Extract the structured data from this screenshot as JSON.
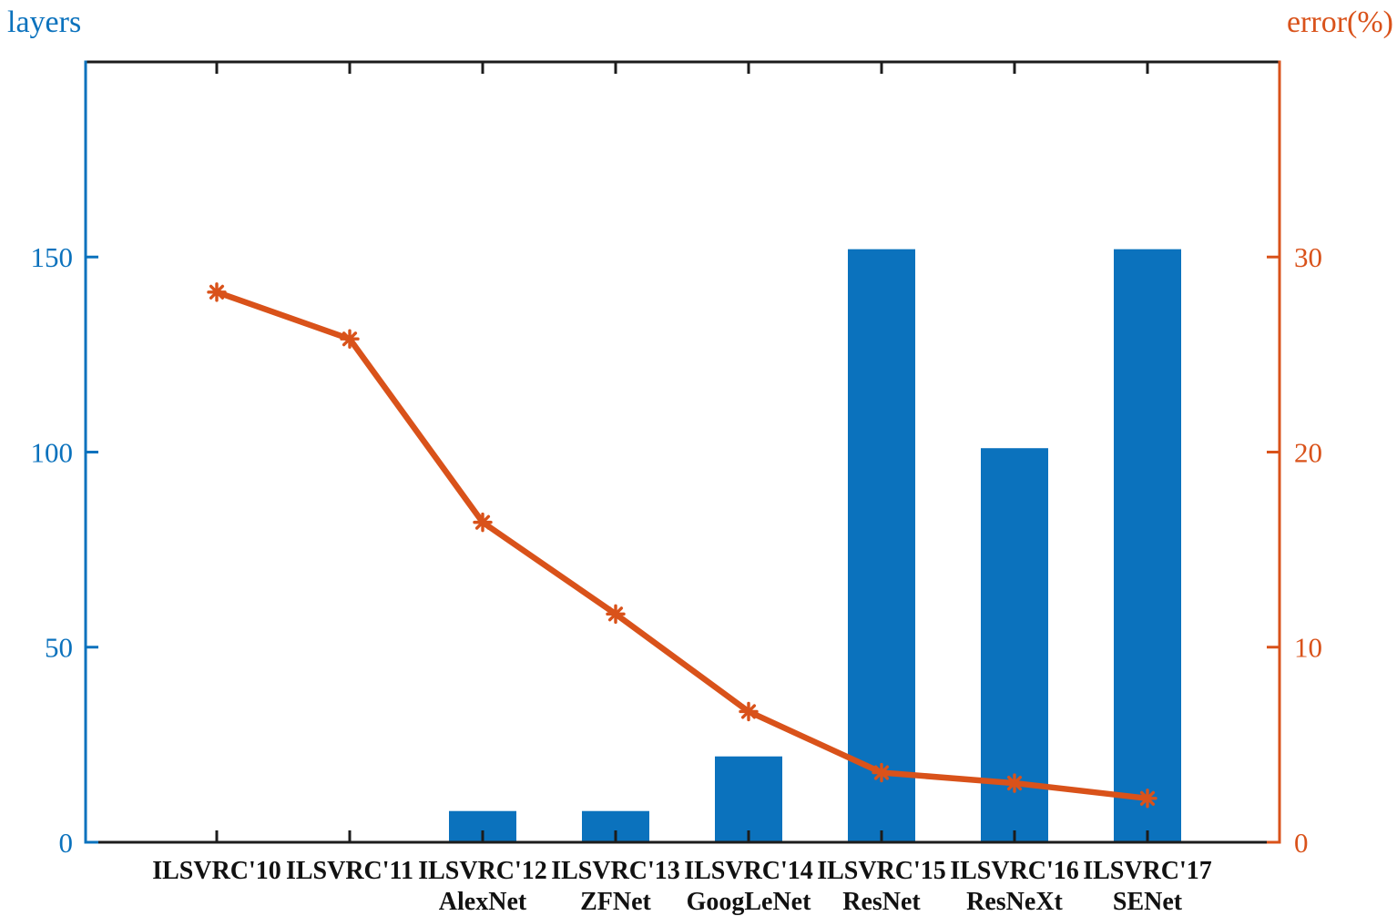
{
  "chart_data": {
    "type": "bar",
    "subtype": "bar+line dual axis",
    "categories": [
      "ILSVRC'10",
      "ILSVRC'11",
      "ILSVRC'12",
      "ILSVRC'13",
      "ILSVRC'14",
      "ILSVRC'15",
      "ILSVRC'16",
      "ILSVRC'17"
    ],
    "category_sublabels": [
      "",
      "",
      "AlexNet",
      "ZFNet",
      "GoogLeNet",
      "ResNet",
      "ResNeXt",
      "SENet"
    ],
    "series": [
      {
        "name": "layers",
        "type": "bar",
        "axis": "left",
        "values": [
          null,
          null,
          8,
          8,
          22,
          152,
          101,
          152
        ]
      },
      {
        "name": "error(%)",
        "type": "line",
        "axis": "right",
        "values": [
          28.2,
          25.8,
          16.4,
          11.7,
          6.7,
          3.57,
          3.03,
          2.25
        ],
        "marker": "asterisk"
      }
    ],
    "left_axis": {
      "label": "layers",
      "tick_labels": [
        "0",
        "50",
        "100",
        "150"
      ],
      "tick_values": [
        0,
        50,
        100,
        150
      ],
      "range": [
        0,
        200
      ]
    },
    "right_axis": {
      "label": "error(%)",
      "tick_labels": [
        "0",
        "10",
        "20",
        "30"
      ],
      "tick_values": [
        0,
        10,
        20,
        30
      ],
      "range": [
        0,
        40
      ]
    },
    "grid": true,
    "legend": "none",
    "colors": {
      "bar_blue": "#0b72bd",
      "line_orange": "#d9521a",
      "left_axis_color": "#0b72bd",
      "right_axis_color": "#d9521a",
      "frame_black": "#1c1c1c",
      "grid_gray": "#d6d6d6",
      "grid_red_tint": "#eab9a8",
      "xlabel_black": "#111111"
    }
  }
}
